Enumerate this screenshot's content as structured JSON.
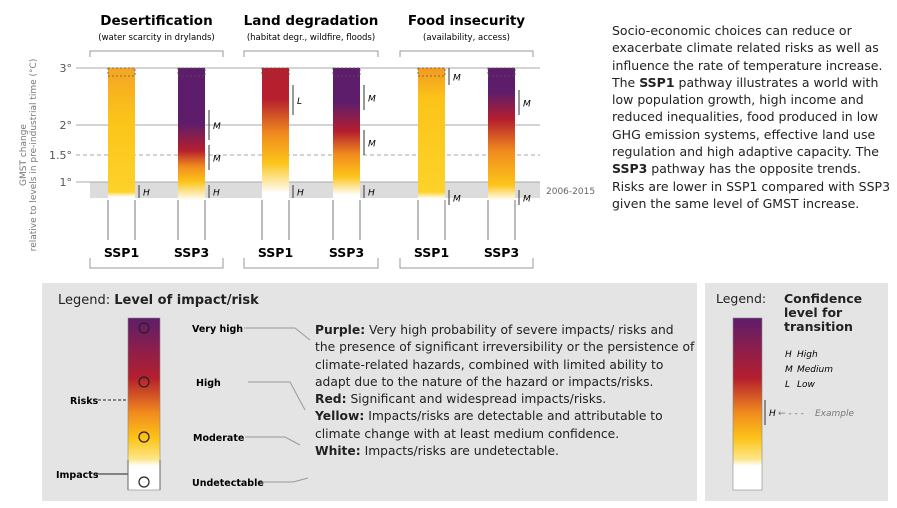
{
  "chart": {
    "y_axis_label": [
      "GMST change",
      "relative to levels in pre-industrial time (°C)"
    ],
    "y_labels": [
      "3°",
      "2°",
      "1.5°",
      "1°"
    ],
    "reference_period": "2006-2015",
    "columns": [
      {
        "title": "Desertification",
        "subtitle": "(water scarcity in drylands)",
        "scenarios": [
          {
            "label": "SSP1",
            "confidence": [
              "H"
            ]
          },
          {
            "label": "SSP3",
            "confidence": [
              "M",
              "M",
              "H"
            ]
          }
        ]
      },
      {
        "title": "Land degradation",
        "subtitle": "(habitat degr., wildfire, floods)",
        "scenarios": [
          {
            "label": "SSP1",
            "confidence": [
              "L",
              "H"
            ]
          },
          {
            "label": "SSP3",
            "confidence": [
              "M",
              "M",
              "H"
            ]
          }
        ]
      },
      {
        "title": "Food insecurity",
        "subtitle": "(availability, access)",
        "scenarios": [
          {
            "label": "SSP1",
            "confidence": [
              "M",
              "M"
            ]
          },
          {
            "label": "SSP3",
            "confidence": [
              "M",
              "M"
            ]
          }
        ]
      }
    ]
  },
  "description": [
    "Socio-economic choices can reduce or exacerbate climate related risks as well as influence the rate of temperature increase. The ",
    "SSP1",
    " pathway illustrates a world with low population growth, high income and reduced inequalities, food produced in low GHG emission systems, effective land use regulation and high adaptive capacity. The ",
    "SSP3",
    " pathway has the opposite trends. Risks are lower in SSP1 compared with SSP3 given the same level of GMST increase."
  ],
  "legend_risk": {
    "prefix": "Legend: ",
    "title": "Level of impact/risk",
    "levels": [
      "Very high",
      "High",
      "Moderate",
      "Undetectable"
    ],
    "left_labels": [
      "Risks",
      "Impacts"
    ],
    "descriptions": [
      {
        "color": "Purple:",
        "text": " Very high probability of severe impacts/ risks and the presence of significant irreversibility or the persistence of climate-related hazards, combined with limited ability to adapt due to the nature of the hazard or impacts/risks."
      },
      {
        "color": "Red:",
        "text": " Significant and widespread impacts/risks."
      },
      {
        "color": "Yellow:",
        "text": " Impacts/risks are detectable and attributable to climate change with at least medium confidence."
      },
      {
        "color": "White:",
        "text": " Impacts/risks are undetectable."
      }
    ]
  },
  "legend_confidence": {
    "prefix": "Legend: ",
    "title": "Confidence level for transition",
    "levels": [
      {
        "code": "H",
        "name": "High"
      },
      {
        "code": "M",
        "name": "Medium"
      },
      {
        "code": "L",
        "name": "Low"
      }
    ],
    "example_code": "H",
    "example_label": "Example"
  }
}
